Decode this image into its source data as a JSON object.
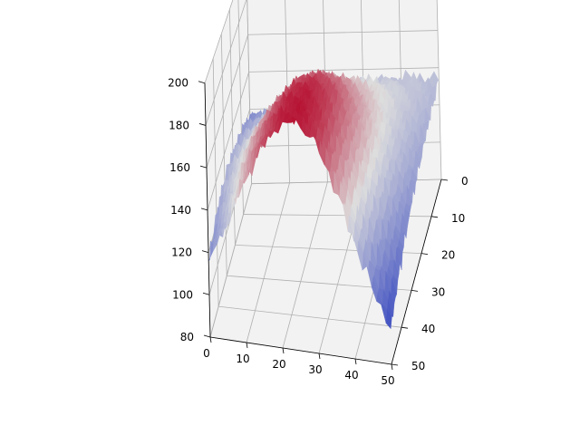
{
  "chart_data": {
    "type": "surface",
    "colormap": "coolwarm",
    "grid": true,
    "title": "",
    "xlabel": "",
    "ylabel": "",
    "zlabel": "",
    "x_ticks": [
      0,
      10,
      20,
      30,
      40,
      50
    ],
    "y_ticks": [
      0,
      10,
      20,
      30,
      40,
      50
    ],
    "z_ticks": [
      80,
      100,
      120,
      140,
      160,
      180,
      200
    ],
    "xlim": [
      0,
      50
    ],
    "ylim": [
      0,
      50
    ],
    "zlim": [
      80,
      200
    ],
    "grid_x": [
      0,
      5,
      10,
      15,
      20,
      25,
      30,
      35,
      40,
      45,
      50
    ],
    "grid_y": [
      0,
      5,
      10,
      15,
      20,
      25,
      30,
      35,
      40,
      45,
      50
    ],
    "surface_z": [
      [
        116,
        118,
        121,
        124,
        127,
        130,
        132,
        134,
        135,
        135,
        134
      ],
      [
        120,
        124,
        129,
        134,
        138,
        141,
        142,
        141,
        139,
        136,
        132
      ],
      [
        123,
        129,
        136,
        143,
        148,
        151,
        150,
        147,
        142,
        136,
        130
      ],
      [
        125,
        133,
        142,
        151,
        158,
        160,
        158,
        151,
        143,
        135,
        127
      ],
      [
        127,
        136,
        147,
        158,
        166,
        169,
        165,
        156,
        145,
        134,
        125
      ],
      [
        128,
        139,
        152,
        164,
        173,
        176,
        171,
        160,
        146,
        133,
        122
      ],
      [
        128,
        141,
        156,
        169,
        178,
        181,
        176,
        163,
        147,
        131,
        118
      ],
      [
        127,
        141,
        158,
        172,
        182,
        185,
        178,
        164,
        146,
        129,
        114
      ],
      [
        124,
        140,
        158,
        174,
        184,
        187,
        180,
        164,
        144,
        125,
        109
      ],
      [
        120,
        138,
        157,
        174,
        185,
        188,
        181,
        163,
        141,
        120,
        103
      ],
      [
        116,
        134,
        155,
        173,
        185,
        188,
        180,
        161,
        137,
        115,
        97
      ]
    ]
  },
  "colors": {
    "pane": "#f2f2f2",
    "gridline": "#b0b0b0",
    "cmap_low": "#3b4cc0",
    "cmap_mid": "#dddddd",
    "cmap_high": "#b40426"
  }
}
